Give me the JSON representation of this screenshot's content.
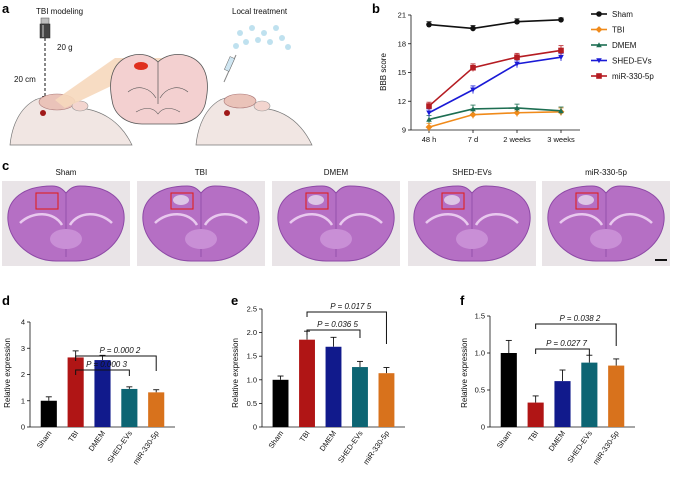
{
  "panel_letters": {
    "a": "a",
    "b": "b",
    "c": "c",
    "d": "d",
    "e": "e",
    "f": "f"
  },
  "panel_a": {
    "tbi_modeling": "TBI modeling",
    "weight": "20 g",
    "height": "20 cm",
    "local_treatment": "Local treatment"
  },
  "panel_c": {
    "titles": [
      "Sham",
      "TBI",
      "DMEM",
      "SHED-EVs",
      "miR-330-5p"
    ]
  },
  "colors": {
    "Sham": "#111111",
    "TBI": "#f08a1a",
    "DMEM": "#1d6e52",
    "SHED-EVs": "#1a1ad6",
    "miR-330-5p": "#b51c22",
    "bar_sham": "#000000",
    "bar_tbi": "#b01515",
    "bar_dmem": "#111a8c",
    "bar_shed": "#0d6573",
    "bar_mir": "#d8721c",
    "tissue": "#b56fc4",
    "tissue_dark": "#8d49a6",
    "roi": "#e02020"
  },
  "chart_data": [
    {
      "id": "b",
      "type": "line",
      "x": [
        "48 h",
        "7 d",
        "2 weeks",
        "3 weeks"
      ],
      "ylabel": "BBB score",
      "ylim": [
        9,
        21
      ],
      "yticks": [
        9,
        12,
        15,
        18,
        21
      ],
      "legend_position": "right",
      "series": [
        {
          "name": "Sham",
          "values": [
            20.0,
            19.6,
            20.3,
            20.5
          ],
          "err": [
            0.3,
            0.3,
            0.3,
            0.2
          ]
        },
        {
          "name": "TBI",
          "values": [
            9.3,
            10.6,
            10.8,
            10.9
          ],
          "err": [
            0.4,
            0.4,
            0.4,
            0.4
          ]
        },
        {
          "name": "DMEM",
          "values": [
            10.1,
            11.2,
            11.3,
            11.0
          ],
          "err": [
            0.4,
            0.4,
            0.4,
            0.4
          ]
        },
        {
          "name": "SHED-EVs",
          "values": [
            10.8,
            13.2,
            15.9,
            16.6
          ],
          "err": [
            0.4,
            0.4,
            0.4,
            0.4
          ]
        },
        {
          "name": "miR-330-5p",
          "values": [
            11.5,
            15.5,
            16.6,
            17.3
          ],
          "err": [
            0.4,
            0.4,
            0.4,
            0.5
          ]
        }
      ]
    },
    {
      "id": "d",
      "type": "bar",
      "categories": [
        "Sham",
        "TBI",
        "DMEM",
        "SHED-EVs",
        "miR-330-5p"
      ],
      "values": [
        1.0,
        2.65,
        2.55,
        1.45,
        1.32
      ],
      "err": [
        0.15,
        0.25,
        0.18,
        0.08,
        0.1
      ],
      "ylabel": "Relative expression",
      "ylim": [
        0,
        4
      ],
      "yticks": [
        0,
        1,
        2,
        3,
        4
      ],
      "annotations": [
        {
          "text": "P = 0.000 2",
          "from": "TBI",
          "to": "miR-330-5p"
        },
        {
          "text": "P = 0.000 3",
          "from": "TBI",
          "to": "SHED-EVs"
        }
      ]
    },
    {
      "id": "e",
      "type": "bar",
      "categories": [
        "Sham",
        "TBI",
        "DMEM",
        "SHED-EVs",
        "miR-330-5p"
      ],
      "values": [
        1.0,
        1.85,
        1.7,
        1.27,
        1.14
      ],
      "err": [
        0.08,
        0.18,
        0.2,
        0.12,
        0.12
      ],
      "ylabel": "Relative expression",
      "ylim": [
        0,
        2.5
      ],
      "yticks": [
        0,
        0.5,
        1.0,
        1.5,
        2.0,
        2.5
      ],
      "annotations": [
        {
          "text": "P = 0.017 5",
          "from": "TBI",
          "to": "miR-330-5p"
        },
        {
          "text": "P = 0.036 5",
          "from": "TBI",
          "to": "SHED-EVs"
        }
      ]
    },
    {
      "id": "f",
      "type": "bar",
      "categories": [
        "Sham",
        "TBI",
        "DMEM",
        "SHED-EVs",
        "miR-330-5p"
      ],
      "values": [
        1.0,
        0.33,
        0.62,
        0.87,
        0.83
      ],
      "err": [
        0.17,
        0.09,
        0.15,
        0.1,
        0.09
      ],
      "ylabel": "Relative expression",
      "ylim": [
        0,
        1.5
      ],
      "yticks": [
        0,
        0.5,
        1.0,
        1.5
      ],
      "annotations": [
        {
          "text": "P = 0.038 2",
          "from": "TBI",
          "to": "miR-330-5p"
        },
        {
          "text": "P = 0.027 7",
          "from": "TBI",
          "to": "SHED-EVs"
        }
      ]
    }
  ]
}
